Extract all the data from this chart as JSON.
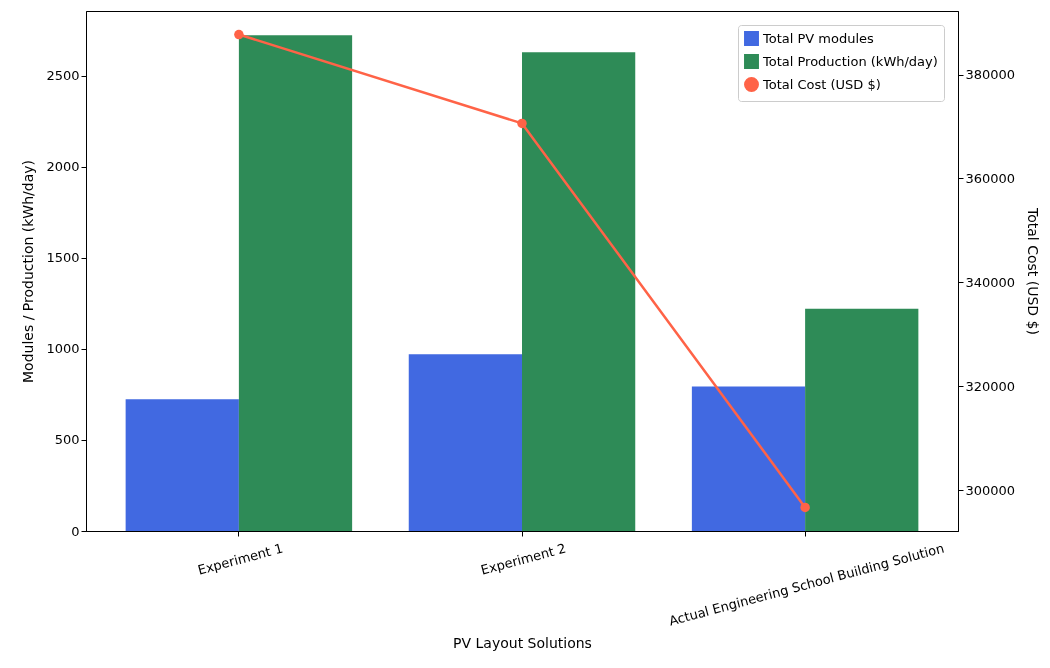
{
  "chart_data": {
    "type": "bar",
    "xlabel": "PV Layout Solutions",
    "ylabel": "Modules / Production (kWh/day)",
    "y2label": "Total Cost (USD $)",
    "categories": [
      "Experiment 1",
      "Experiment 2",
      "Actual Engineering School Building Solution"
    ],
    "series": [
      {
        "name": "Total PV modules",
        "type": "bar",
        "color": "#4169e1",
        "values": [
          724,
          971,
          794
        ]
      },
      {
        "name": "Total Production (kWh/day)",
        "type": "bar",
        "color": "#2e8b57",
        "values": [
          2722,
          2629,
          1220
        ]
      },
      {
        "name": "Total Cost (USD $)",
        "type": "line",
        "axis": "y2",
        "color": "#ff6347",
        "marker": "circle",
        "values": [
          387700,
          370600,
          296700
        ]
      }
    ],
    "ylim": [
      0,
      2855
    ],
    "yticks": [
      0,
      500,
      1000,
      1500,
      2000,
      2500
    ],
    "y2lim": [
      292165,
      392230
    ],
    "y2ticks": [
      300000,
      320000,
      340000,
      360000,
      380000
    ],
    "legend": "top right"
  }
}
